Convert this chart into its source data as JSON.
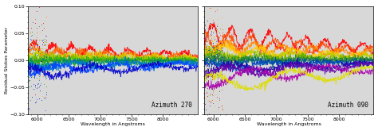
{
  "title_left": "Azimuth 270",
  "title_right": "Azimuth 090",
  "xlabel": "Wavelength in Angstroms",
  "ylabel": "Residual Stokes Parameter",
  "xlim": [
    5850,
    8550
  ],
  "ylim": [
    -0.1,
    0.1
  ],
  "xticks": [
    6000,
    6500,
    7000,
    7500,
    8000
  ],
  "yticks": [
    -0.1,
    -0.05,
    0.0,
    0.05,
    0.1
  ],
  "background_color": "#d8d8d8",
  "colors_left": [
    "#ff0000",
    "#ff6600",
    "#ddcc00",
    "#aacc00",
    "#66bb00",
    "#22aa22",
    "#009966",
    "#0077cc",
    "#0044ff",
    "#0000cc"
  ],
  "offsets_left": [
    0.022,
    0.015,
    0.01,
    0.005,
    0.002,
    -0.002,
    -0.006,
    -0.012,
    -0.018,
    -0.024
  ],
  "colors_right": [
    "#ff0000",
    "#ff4400",
    "#ff8800",
    "#ffcc00",
    "#bbcc00",
    "#66aa00",
    "#228833",
    "#006688",
    "#0044bb",
    "#2200aa",
    "#6600aa",
    "#aa00aa",
    "#dddd00"
  ],
  "offsets_right": [
    0.05,
    0.038,
    0.028,
    0.02,
    0.013,
    0.007,
    0.002,
    -0.004,
    -0.01,
    -0.017,
    -0.025,
    -0.035,
    -0.048
  ]
}
